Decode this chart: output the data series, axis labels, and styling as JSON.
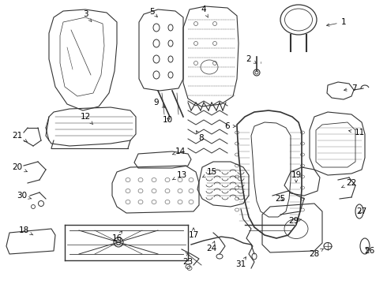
{
  "bg_color": "#ffffff",
  "line_color": "#333333",
  "label_color": "#000000",
  "font_size": 7.5,
  "labels": [
    [
      "1",
      435,
      28,
      410,
      33
    ],
    [
      "2",
      315,
      75,
      328,
      82
    ],
    [
      "3",
      108,
      18,
      118,
      30
    ],
    [
      "4",
      258,
      12,
      265,
      25
    ],
    [
      "5",
      192,
      15,
      200,
      22
    ],
    [
      "6",
      288,
      160,
      302,
      160
    ],
    [
      "7",
      448,
      112,
      432,
      115
    ],
    [
      "8",
      255,
      175,
      248,
      165
    ],
    [
      "9",
      198,
      130,
      212,
      138
    ],
    [
      "10",
      212,
      152,
      218,
      148
    ],
    [
      "11",
      455,
      168,
      438,
      165
    ],
    [
      "12",
      108,
      148,
      118,
      158
    ],
    [
      "13",
      230,
      222,
      218,
      228
    ],
    [
      "14",
      228,
      192,
      218,
      196
    ],
    [
      "15",
      268,
      218,
      256,
      225
    ],
    [
      "16",
      148,
      302,
      155,
      292
    ],
    [
      "17",
      245,
      298,
      245,
      288
    ],
    [
      "18",
      30,
      292,
      42,
      298
    ],
    [
      "19",
      375,
      222,
      375,
      232
    ],
    [
      "20",
      22,
      212,
      35,
      218
    ],
    [
      "21",
      22,
      172,
      35,
      180
    ],
    [
      "22",
      445,
      232,
      432,
      238
    ],
    [
      "23",
      238,
      332,
      238,
      320
    ],
    [
      "24",
      268,
      315,
      272,
      305
    ],
    [
      "25",
      355,
      252,
      362,
      255
    ],
    [
      "26",
      468,
      318,
      460,
      312
    ],
    [
      "27",
      458,
      268,
      452,
      272
    ],
    [
      "28",
      398,
      322,
      410,
      315
    ],
    [
      "29",
      372,
      280,
      382,
      278
    ],
    [
      "30",
      28,
      248,
      40,
      252
    ],
    [
      "31",
      305,
      335,
      312,
      325
    ]
  ]
}
